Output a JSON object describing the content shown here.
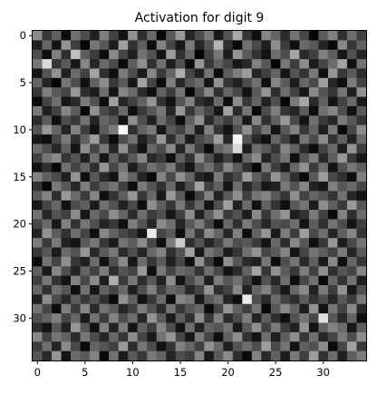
{
  "chart_data": {
    "type": "heatmap",
    "title": "Activation for digit 9",
    "xlabel": "",
    "ylabel": "",
    "rows": 35,
    "cols": 35,
    "colormap": "gray",
    "value_range": [
      0,
      1
    ],
    "x_ticks": [
      0,
      5,
      10,
      15,
      20,
      25,
      30
    ],
    "y_ticks": [
      0,
      5,
      10,
      15,
      20,
      25,
      30
    ],
    "values": [
      [
        0.55,
        0.22,
        0.38,
        0.05,
        0.44,
        0.31,
        0.12,
        0.49,
        0.26,
        0.08,
        0.57,
        0.18,
        0.41,
        0.03,
        0.35,
        0.6,
        0.14,
        0.29,
        0.47,
        0.1,
        0.33,
        0.66,
        0.21,
        0.06,
        0.52,
        0.39,
        0.16,
        0.45,
        0.28,
        0.02,
        0.36,
        0.5,
        0.19,
        0.43,
        0.25
      ],
      [
        0.13,
        0.4,
        0.07,
        0.58,
        0.24,
        0.02,
        0.46,
        0.34,
        0.11,
        0.62,
        0.2,
        0.37,
        0.05,
        0.51,
        0.27,
        0.09,
        0.48,
        0.15,
        0.32,
        0.7,
        0.18,
        0.04,
        0.44,
        0.29,
        0.12,
        0.56,
        0.23,
        0.06,
        0.41,
        0.35,
        0.14,
        0.03,
        0.53,
        0.21,
        0.38
      ],
      [
        0.3,
        0.06,
        0.49,
        0.18,
        0.75,
        0.36,
        0.23,
        0.05,
        0.54,
        0.28,
        0.12,
        0.45,
        0.33,
        0.08,
        0.61,
        0.19,
        0.4,
        0.02,
        0.26,
        0.47,
        0.11,
        0.58,
        0.35,
        0.2,
        0.07,
        0.43,
        0.3,
        0.64,
        0.16,
        0.25,
        0.5,
        0.37,
        0.09,
        0.32,
        0.14
      ],
      [
        0.46,
        0.85,
        0.21,
        0.35,
        0.09,
        0.52,
        0.15,
        0.41,
        0.29,
        0.03,
        0.37,
        0.56,
        0.19,
        0.44,
        0.12,
        0.31,
        0.05,
        0.59,
        0.22,
        0.38,
        0.27,
        0.09,
        0.16,
        0.5,
        0.34,
        0.02,
        0.47,
        0.24,
        0.55,
        0.11,
        0.28,
        0.42,
        0.63,
        0.07,
        0.45
      ],
      [
        0.08,
        0.33,
        0.57,
        0.12,
        0.42,
        0.26,
        0.64,
        0.18,
        0.06,
        0.48,
        0.3,
        0.1,
        0.53,
        0.23,
        0.4,
        0.68,
        0.27,
        0.13,
        0.45,
        0.04,
        0.36,
        0.49,
        0.61,
        0.14,
        0.25,
        0.39,
        0.08,
        0.33,
        0.2,
        0.47,
        0.06,
        0.58,
        0.22,
        0.36,
        0.17
      ],
      [
        0.39,
        0.14,
        0.02,
        0.46,
        0.31,
        0.07,
        0.38,
        0.55,
        0.22,
        0.35,
        0.09,
        0.63,
        0.27,
        0.04,
        0.5,
        0.16,
        0.34,
        0.42,
        0.08,
        0.57,
        0.21,
        0.13,
        0.3,
        0.44,
        0.06,
        0.52,
        0.36,
        0.11,
        0.4,
        0.29,
        0.62,
        0.15,
        0.05,
        0.49,
        0.26
      ],
      [
        0.21,
        0.5,
        0.35,
        0.27,
        0.6,
        0.19,
        0.11,
        0.43,
        0.08,
        0.52,
        0.41,
        0.17,
        0.06,
        0.38,
        0.24,
        0.45,
        0.02,
        0.31,
        0.53,
        0.19,
        0.4,
        0.28,
        0.07,
        0.35,
        0.58,
        0.18,
        0.43,
        0.26,
        0.09,
        0.54,
        0.33,
        0.21,
        0.46,
        0.12,
        0.57
      ],
      [
        0.04,
        0.27,
        0.44,
        0.09,
        0.16,
        0.48,
        0.32,
        0.05,
        0.62,
        0.14,
        0.25,
        0.39,
        0.58,
        0.2,
        0.07,
        0.33,
        0.51,
        0.18,
        0.12,
        0.42,
        0.05,
        0.55,
        0.22,
        0.39,
        0.13,
        0.31,
        0.02,
        0.48,
        0.65,
        0.17,
        0.38,
        0.08,
        0.26,
        0.41,
        0.1
      ],
      [
        0.48,
        0.12,
        0.25,
        0.53,
        0.37,
        0.03,
        0.56,
        0.29,
        0.19,
        0.41,
        0.06,
        0.23,
        0.34,
        0.47,
        0.15,
        0.59,
        0.22,
        0.4,
        0.28,
        0.09,
        0.63,
        0.17,
        0.46,
        0.04,
        0.3,
        0.49,
        0.21,
        0.14,
        0.36,
        0.05,
        0.44,
        0.52,
        0.31,
        0.07,
        0.35
      ],
      [
        0.17,
        0.36,
        0.06,
        0.3,
        0.22,
        0.45,
        0.14,
        0.4,
        0.33,
        0.08,
        0.55,
        0.31,
        0.12,
        0.42,
        0.27,
        0.05,
        0.38,
        0.57,
        0.16,
        0.34,
        0.24,
        0.41,
        0.1,
        0.53,
        0.19,
        0.37,
        0.6,
        0.29,
        0.08,
        0.43,
        0.23,
        0.15,
        0.48,
        0.34,
        0.2
      ],
      [
        0.33,
        0.59,
        0.4,
        0.14,
        0.51,
        0.24,
        0.07,
        0.36,
        0.48,
        0.98,
        0.18,
        0.39,
        0.47,
        0.09,
        0.35,
        0.26,
        0.44,
        0.11,
        0.5,
        0.21,
        0.07,
        0.32,
        0.56,
        0.27,
        0.45,
        0.08,
        0.34,
        0.51,
        0.22,
        0.39,
        0.12,
        0.47,
        0.03,
        0.28,
        0.54
      ],
      [
        0.1,
        0.05,
        0.28,
        0.48,
        0.19,
        0.38,
        0.61,
        0.22,
        0.04,
        0.31,
        0.45,
        0.13,
        0.26,
        0.59,
        0.18,
        0.41,
        0.1,
        0.29,
        0.36,
        0.62,
        0.15,
        0.96,
        0.33,
        0.16,
        0.06,
        0.4,
        0.25,
        0.09,
        0.46,
        0.3,
        0.55,
        0.2,
        0.38,
        0.13,
        0.41
      ],
      [
        0.42,
        0.31,
        0.15,
        0.37,
        0.08,
        0.55,
        0.27,
        0.47,
        0.15,
        0.57,
        0.23,
        0.07,
        0.4,
        0.3,
        0.53,
        0.14,
        0.48,
        0.25,
        0.05,
        0.39,
        0.47,
        0.85,
        0.12,
        0.43,
        0.35,
        0.21,
        0.52,
        0.38,
        0.17,
        0.05,
        0.27,
        0.41,
        0.11,
        0.58,
        0.24
      ],
      [
        0.26,
        0.46,
        0.54,
        0.21,
        0.33,
        0.12,
        0.43,
        0.09,
        0.38,
        0.2,
        0.35,
        0.52,
        0.16,
        0.23,
        0.06,
        0.37,
        0.2,
        0.55,
        0.31,
        0.12,
        0.26,
        0.08,
        0.4,
        0.55,
        0.14,
        0.3,
        0.45,
        0.06,
        0.33,
        0.49,
        0.16,
        0.36,
        0.59,
        0.22,
        0.09
      ],
      [
        0.07,
        0.18,
        0.03,
        0.44,
        0.26,
        0.4,
        0.19,
        0.58,
        0.28,
        0.46,
        0.11,
        0.29,
        0.44,
        0.35,
        0.49,
        0.22,
        0.08,
        0.34,
        0.44,
        0.27,
        0.53,
        0.36,
        0.19,
        0.03,
        0.48,
        0.24,
        0.11,
        0.4,
        0.57,
        0.23,
        0.43,
        0.07,
        0.31,
        0.46,
        0.37
      ],
      [
        0.51,
        0.38,
        0.29,
        0.12,
        0.58,
        0.06,
        0.34,
        0.16,
        0.07,
        0.53,
        0.39,
        0.14,
        0.03,
        0.51,
        0.28,
        0.57,
        0.4,
        0.15,
        0.09,
        0.48,
        0.19,
        0.28,
        0.61,
        0.37,
        0.25,
        0.58,
        0.39,
        0.18,
        0.04,
        0.35,
        0.61,
        0.28,
        0.19,
        0.05,
        0.5
      ],
      [
        0.2,
        0.03,
        0.47,
        0.35,
        0.15,
        0.49,
        0.24,
        0.37,
        0.45,
        0.25,
        0.05,
        0.48,
        0.33,
        0.19,
        0.41,
        0.12,
        0.31,
        0.63,
        0.25,
        0.38,
        0.08,
        0.44,
        0.15,
        0.29,
        0.09,
        0.13,
        0.47,
        0.32,
        0.52,
        0.14,
        0.09,
        0.5,
        0.34,
        0.41,
        0.27
      ],
      [
        0.36,
        0.52,
        0.18,
        0.6,
        0.41,
        0.23,
        0.52,
        0.06,
        0.2,
        0.36,
        0.59,
        0.22,
        0.41,
        0.1,
        0.6,
        0.35,
        0.04,
        0.26,
        0.51,
        0.14,
        0.35,
        0.56,
        0.25,
        0.46,
        0.52,
        0.34,
        0.21,
        0.56,
        0.26,
        0.4,
        0.32,
        0.2,
        0.44,
        0.15,
        0.07
      ],
      [
        0.09,
        0.27,
        0.4,
        0.07,
        0.3,
        0.37,
        0.11,
        0.44,
        0.32,
        0.13,
        0.29,
        0.06,
        0.56,
        0.37,
        0.21,
        0.47,
        0.22,
        0.4,
        0.07,
        0.31,
        0.62,
        0.13,
        0.42,
        0.07,
        0.38,
        0.2,
        0.06,
        0.35,
        0.45,
        0.11,
        0.55,
        0.37,
        0.23,
        0.6,
        0.33
      ],
      [
        0.44,
        0.15,
        0.32,
        0.25,
        0.55,
        0.09,
        0.41,
        0.29,
        0.55,
        0.4,
        0.17,
        0.43,
        0.24,
        0.31,
        0.09,
        0.26,
        0.55,
        0.13,
        0.37,
        0.57,
        0.23,
        0.32,
        0.11,
        0.54,
        0.22,
        0.44,
        0.58,
        0.12,
        0.2,
        0.48,
        0.26,
        0.04,
        0.51,
        0.18,
        0.42
      ],
      [
        0.28,
        0.41,
        0.09,
        0.5,
        0.2,
        0.46,
        0.31,
        0.14,
        0.22,
        0.06,
        0.49,
        0.33,
        0.15,
        0.54,
        0.44,
        0.15,
        0.35,
        0.49,
        0.28,
        0.05,
        0.41,
        0.19,
        0.48,
        0.3,
        0.15,
        0.33,
        0.29,
        0.43,
        0.07,
        0.36,
        0.19,
        0.45,
        0.3,
        0.08,
        0.25
      ],
      [
        0.14,
        0.57,
        0.36,
        0.19,
        0.43,
        0.27,
        0.05,
        0.53,
        0.38,
        0.28,
        0.21,
        0.08,
        0.92,
        0.27,
        0.35,
        0.06,
        0.46,
        0.21,
        0.54,
        0.4,
        0.15,
        0.5,
        0.05,
        0.39,
        0.58,
        0.1,
        0.49,
        0.24,
        0.62,
        0.29,
        0.43,
        0.14,
        0.38,
        0.52,
        0.2
      ],
      [
        0.49,
        0.23,
        0.48,
        0.13,
        0.08,
        0.35,
        0.47,
        0.22,
        0.1,
        0.45,
        0.36,
        0.55,
        0.28,
        0.06,
        0.49,
        0.8,
        0.18,
        0.32,
        0.14,
        0.26,
        0.47,
        0.3,
        0.35,
        0.23,
        0.08,
        0.41,
        0.17,
        0.53,
        0.34,
        0.06,
        0.22,
        0.59,
        0.11,
        0.29,
        0.46
      ],
      [
        0.22,
        0.34,
        0.11,
        0.42,
        0.32,
        0.58,
        0.16,
        0.36,
        0.47,
        0.17,
        0.31,
        0.14,
        0.4,
        0.51,
        0.19,
        0.33,
        0.63,
        0.09,
        0.46,
        0.37,
        0.11,
        0.21,
        0.44,
        0.58,
        0.28,
        0.35,
        0.52,
        0.08,
        0.27,
        0.45,
        0.37,
        0.26,
        0.48,
        0.14,
        0.35
      ],
      [
        0.05,
        0.45,
        0.27,
        0.56,
        0.21,
        0.13,
        0.42,
        0.07,
        0.31,
        0.54,
        0.09,
        0.42,
        0.21,
        0.36,
        0.12,
        0.28,
        0.05,
        0.57,
        0.23,
        0.03,
        0.55,
        0.34,
        0.17,
        0.12,
        0.47,
        0.05,
        0.31,
        0.46,
        0.16,
        0.38,
        0.1,
        0.53,
        0.06,
        0.4,
        0.21
      ],
      [
        0.37,
        0.1,
        0.53,
        0.3,
        0.14,
        0.39,
        0.25,
        0.49,
        0.18,
        0.33,
        0.26,
        0.6,
        0.05,
        0.47,
        0.27,
        0.42,
        0.37,
        0.2,
        0.43,
        0.29,
        0.08,
        0.17,
        0.38,
        0.64,
        0.21,
        0.56,
        0.36,
        0.22,
        0.49,
        0.25,
        0.56,
        0.18,
        0.33,
        0.27,
        0.52
      ],
      [
        0.25,
        0.47,
        0.2,
        0.08,
        0.51,
        0.28,
        0.54,
        0.12,
        0.68,
        0.23,
        0.47,
        0.18,
        0.35,
        0.13,
        0.55,
        0.08,
        0.3,
        0.45,
        0.12,
        0.49,
        0.34,
        0.44,
        0.26,
        0.07,
        0.32,
        0.15,
        0.43,
        0.06,
        0.28,
        0.44,
        0.03,
        0.4,
        0.2,
        0.45,
        0.12
      ],
      [
        0.4,
        0.19,
        0.43,
        0.34,
        0.06,
        0.44,
        0.08,
        0.38,
        0.27,
        0.41,
        0.12,
        0.31,
        0.5,
        0.25,
        0.4,
        0.36,
        0.16,
        0.27,
        0.58,
        0.18,
        0.26,
        0.52,
        0.13,
        0.4,
        0.5,
        0.28,
        0.09,
        0.41,
        0.54,
        0.13,
        0.48,
        0.24,
        0.57,
        0.09,
        0.31
      ],
      [
        0.12,
        0.55,
        0.29,
        0.16,
        0.36,
        0.22,
        0.33,
        0.2,
        0.04,
        0.57,
        0.38,
        0.07,
        0.22,
        0.42,
        0.06,
        0.53,
        0.47,
        0.09,
        0.35,
        0.44,
        0.14,
        0.06,
        0.91,
        0.31,
        0.17,
        0.42,
        0.27,
        0.18,
        0.36,
        0.2,
        0.3,
        0.15,
        0.35,
        0.23,
        0.47
      ],
      [
        0.45,
        0.28,
        0.05,
        0.49,
        0.23,
        0.52,
        0.17,
        0.45,
        0.36,
        0.15,
        0.26,
        0.49,
        0.33,
        0.17,
        0.46,
        0.22,
        0.34,
        0.41,
        0.05,
        0.27,
        0.58,
        0.38,
        0.25,
        0.46,
        0.04,
        0.35,
        0.53,
        0.39,
        0.11,
        0.57,
        0.07,
        0.45,
        0.26,
        0.54,
        0.16
      ],
      [
        0.31,
        0.39,
        0.5,
        0.27,
        0.4,
        0.1,
        0.45,
        0.24,
        0.51,
        0.3,
        0.43,
        0.15,
        0.58,
        0.36,
        0.11,
        0.37,
        0.19,
        0.55,
        0.22,
        0.5,
        0.17,
        0.29,
        0.49,
        0.14,
        0.37,
        0.19,
        0.06,
        0.32,
        0.46,
        0.28,
        0.88,
        0.34,
        0.16,
        0.39,
        0.05
      ],
      [
        0.18,
        0.08,
        0.34,
        0.13,
        0.59,
        0.33,
        0.06,
        0.5,
        0.13,
        0.49,
        0.08,
        0.38,
        0.24,
        0.52,
        0.3,
        0.08,
        0.43,
        0.13,
        0.39,
        0.33,
        0.45,
        0.1,
        0.35,
        0.56,
        0.25,
        0.48,
        0.24,
        0.13,
        0.58,
        0.07,
        0.39,
        0.51,
        0.42,
        0.09,
        0.36
      ],
      [
        0.53,
        0.26,
        0.46,
        0.38,
        0.17,
        0.47,
        0.29,
        0.15,
        0.4,
        0.21,
        0.54,
        0.27,
        0.1,
        0.45,
        0.59,
        0.28,
        0.09,
        0.48,
        0.27,
        0.06,
        0.38,
        0.55,
        0.2,
        0.08,
        0.43,
        0.12,
        0.37,
        0.55,
        0.21,
        0.44,
        0.15,
        0.27,
        0.48,
        0.31,
        0.55
      ],
      [
        0.24,
        0.43,
        0.14,
        0.54,
        0.28,
        0.04,
        0.39,
        0.33,
        0.25,
        0.6,
        0.18,
        0.46,
        0.3,
        0.07,
        0.21,
        0.51,
        0.4,
        0.25,
        0.57,
        0.41,
        0.12,
        0.33,
        0.43,
        0.3,
        0.62,
        0.29,
        0.45,
        0.07,
        0.38,
        0.32,
        0.55,
        0.04,
        0.28,
        0.63,
        0.22
      ],
      [
        0.34,
        0.16,
        0.58,
        0.08,
        0.42,
        0.35,
        0.51,
        0.04,
        0.44,
        0.11,
        0.35,
        0.22,
        0.48,
        0.39,
        0.14,
        0.3,
        0.24,
        0.52,
        0.1,
        0.35,
        0.54,
        0.18,
        0.04,
        0.51,
        0.16,
        0.38,
        0.11,
        0.47,
        0.25,
        0.61,
        0.19,
        0.42,
        0.12,
        0.37,
        0.48
      ]
    ]
  }
}
